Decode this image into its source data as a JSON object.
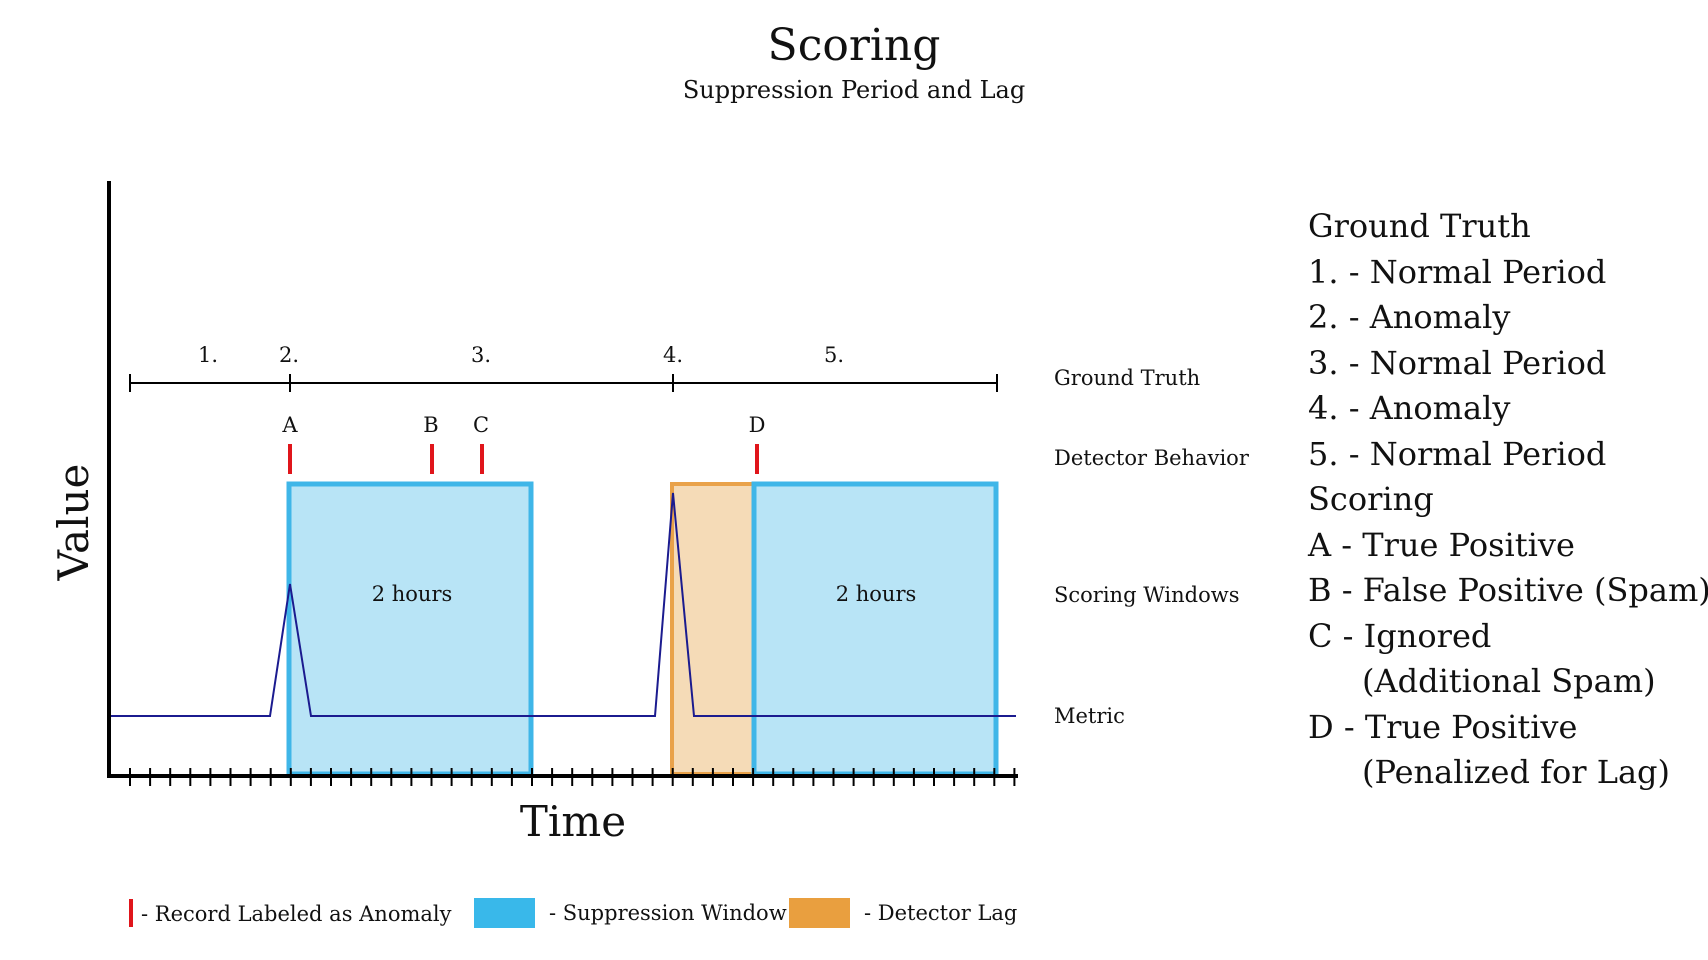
{
  "title": "Scoring",
  "subtitle": "Suppression Period and Lag",
  "axes": {
    "x_label": "Time",
    "y_label": "Value"
  },
  "row_labels": {
    "ground_truth": "Ground Truth",
    "detector_behavior": "Detector Behavior",
    "scoring_windows": "Scoring Windows",
    "metric": "Metric"
  },
  "ground_truth_periods": [
    "1.",
    "2.",
    "3.",
    "4.",
    "5."
  ],
  "detections": [
    "A",
    "B",
    "C",
    "D"
  ],
  "windows": {
    "suppression_1": "2 hours",
    "suppression_2": "2 hours"
  },
  "legend": {
    "record": "- Record Labeled as Anomaly",
    "suppression": "- Suppression Window",
    "lag": "- Detector Lag"
  },
  "colors": {
    "record": "#e0151b",
    "suppression_fill": "#b8e4f6",
    "suppression_border": "#3fb6e8",
    "suppression_swatch": "#39b8ea",
    "lag_fill": "#f5dbb7",
    "lag_border": "#e9a24a",
    "lag_swatch": "#e99f3f",
    "metric": "#1b1b8f"
  },
  "key": {
    "heading": "Ground Truth",
    "items": [
      "1. - Normal Period",
      "2. - Anomaly",
      "3. - Normal Period",
      "4. - Anomaly",
      "5. - Normal Period"
    ],
    "scoring_heading": "Scoring",
    "scoring": [
      "A - True Positive",
      "B - False Positive (Spam)",
      "C - Ignored",
      "(Additional Spam)",
      "D - True Positive",
      "(Penalized for Lag)"
    ]
  }
}
